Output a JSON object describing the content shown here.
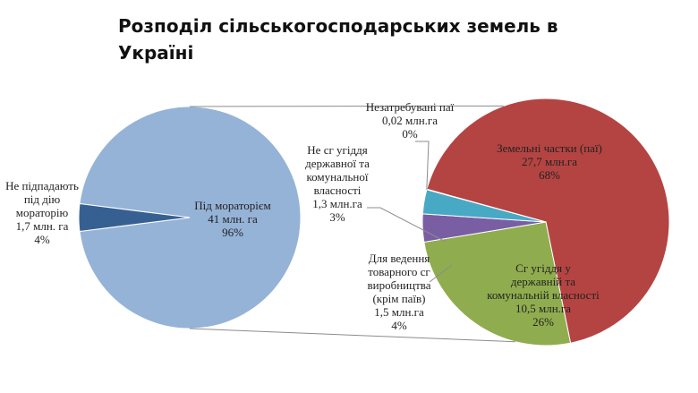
{
  "chart_data": [
    {
      "type": "pie",
      "title": "Розподіл сільськогосподарських земель в Україні",
      "slices": [
        {
          "label_lines": [
            "Під мораторієм"
          ],
          "value_label": "41 млн. га",
          "percent_label": "96%",
          "value": 41,
          "percent": 96,
          "color": "#95b3d7"
        },
        {
          "label_lines": [
            "Не підпадають",
            "під дію",
            "мораторію"
          ],
          "value_label": "1,7 млн. га",
          "percent_label": "4%",
          "value": 1.7,
          "percent": 4,
          "color": "#376092"
        }
      ]
    },
    {
      "type": "pie",
      "slices": [
        {
          "label_lines": [
            "Земельні частки (паї)"
          ],
          "value_label": "27,7 млн.га",
          "percent_label": "68%",
          "value": 27.7,
          "percent": 68,
          "color": "#b44442"
        },
        {
          "label_lines": [
            "Сг угіддя у",
            "державній та",
            "комунальній власності"
          ],
          "value_label": "10,5 млн.га",
          "percent_label": "26%",
          "value": 10.5,
          "percent": 26,
          "color": "#8fad4e"
        },
        {
          "label_lines": [
            "Для ведення",
            "товарного сг",
            "виробництва",
            "(крім паїв)"
          ],
          "value_label": "1,5 млн.га",
          "percent_label": "4%",
          "value": 1.5,
          "percent": 4,
          "color": "#7a5ea3"
        },
        {
          "label_lines": [
            "Не сг угіддя",
            "державної та",
            "комунальної",
            "власності"
          ],
          "value_label": "1,3 млн.га",
          "percent_label": "3%",
          "value": 1.3,
          "percent": 3,
          "color": "#47a9c4"
        },
        {
          "label_lines": [
            "Незатребувані паї"
          ],
          "value_label": "0,02 млн.га",
          "percent_label": "0%",
          "value": 0.02,
          "percent": 0,
          "color": "#f39a38"
        }
      ]
    }
  ]
}
